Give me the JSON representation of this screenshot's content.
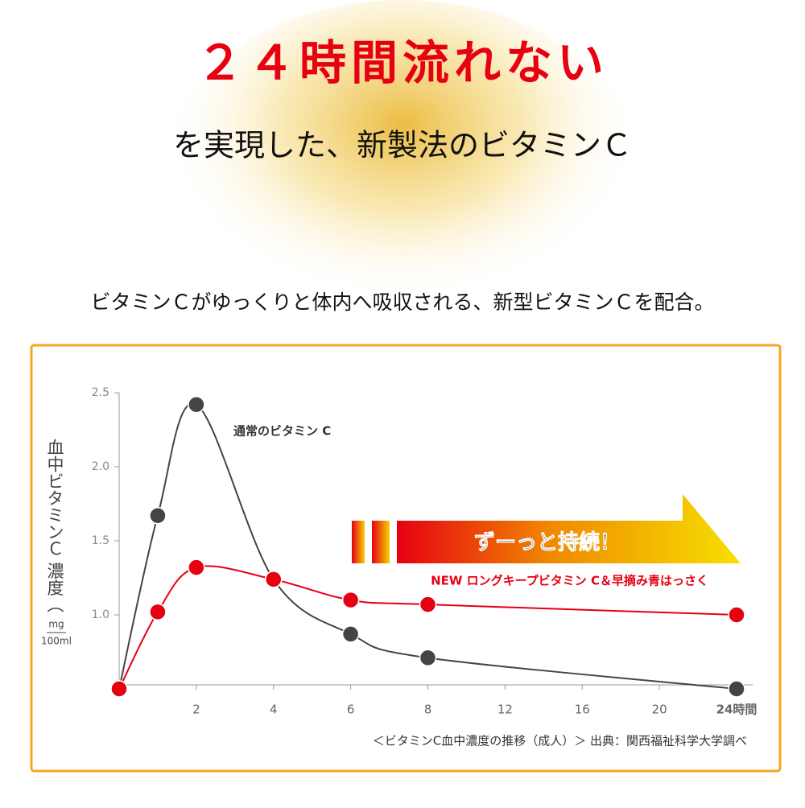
{
  "header": {
    "title": "２４時間流れない",
    "subtitle": "を実現した、新製法のビタミンＣ",
    "lead": "ビタミンＣがゆっくりと体内へ吸収される、新型ビタミンＣを配合。"
  },
  "chart_data": {
    "type": "line",
    "ylabel": "血中ビタミンＣ 濃度（",
    "yunit_top": "mg",
    "yunit_bottom": "100ml",
    "x": [
      0,
      1,
      2,
      4,
      6,
      8,
      24
    ],
    "series": [
      {
        "name": "通常のビタミン C",
        "color": "#444444",
        "values": [
          0.5,
          1.67,
          2.42,
          1.24,
          0.87,
          0.71,
          0.5
        ]
      },
      {
        "name": "NEW ロングキープビタミン C＆早摘み青はっさく",
        "color": "#e60012",
        "values": [
          0.5,
          1.02,
          1.32,
          1.24,
          1.1,
          1.07,
          1.0
        ]
      }
    ],
    "xlim": [
      0,
      24
    ],
    "xticks": [
      2,
      4,
      6,
      8,
      12,
      16,
      20,
      {
        "value": 24,
        "label": "24時間"
      }
    ],
    "ylim": [
      0.5,
      2.5
    ],
    "yticks": [
      {
        "value": 1,
        "label": "1.0"
      },
      1.5,
      {
        "value": 2,
        "label": "2.0"
      },
      2.5
    ],
    "annotation": "ずーっと持続！",
    "source": "＜ビタミンC血中濃度の推移（成人）＞ 出典：関西福祉科学大学調べ"
  }
}
